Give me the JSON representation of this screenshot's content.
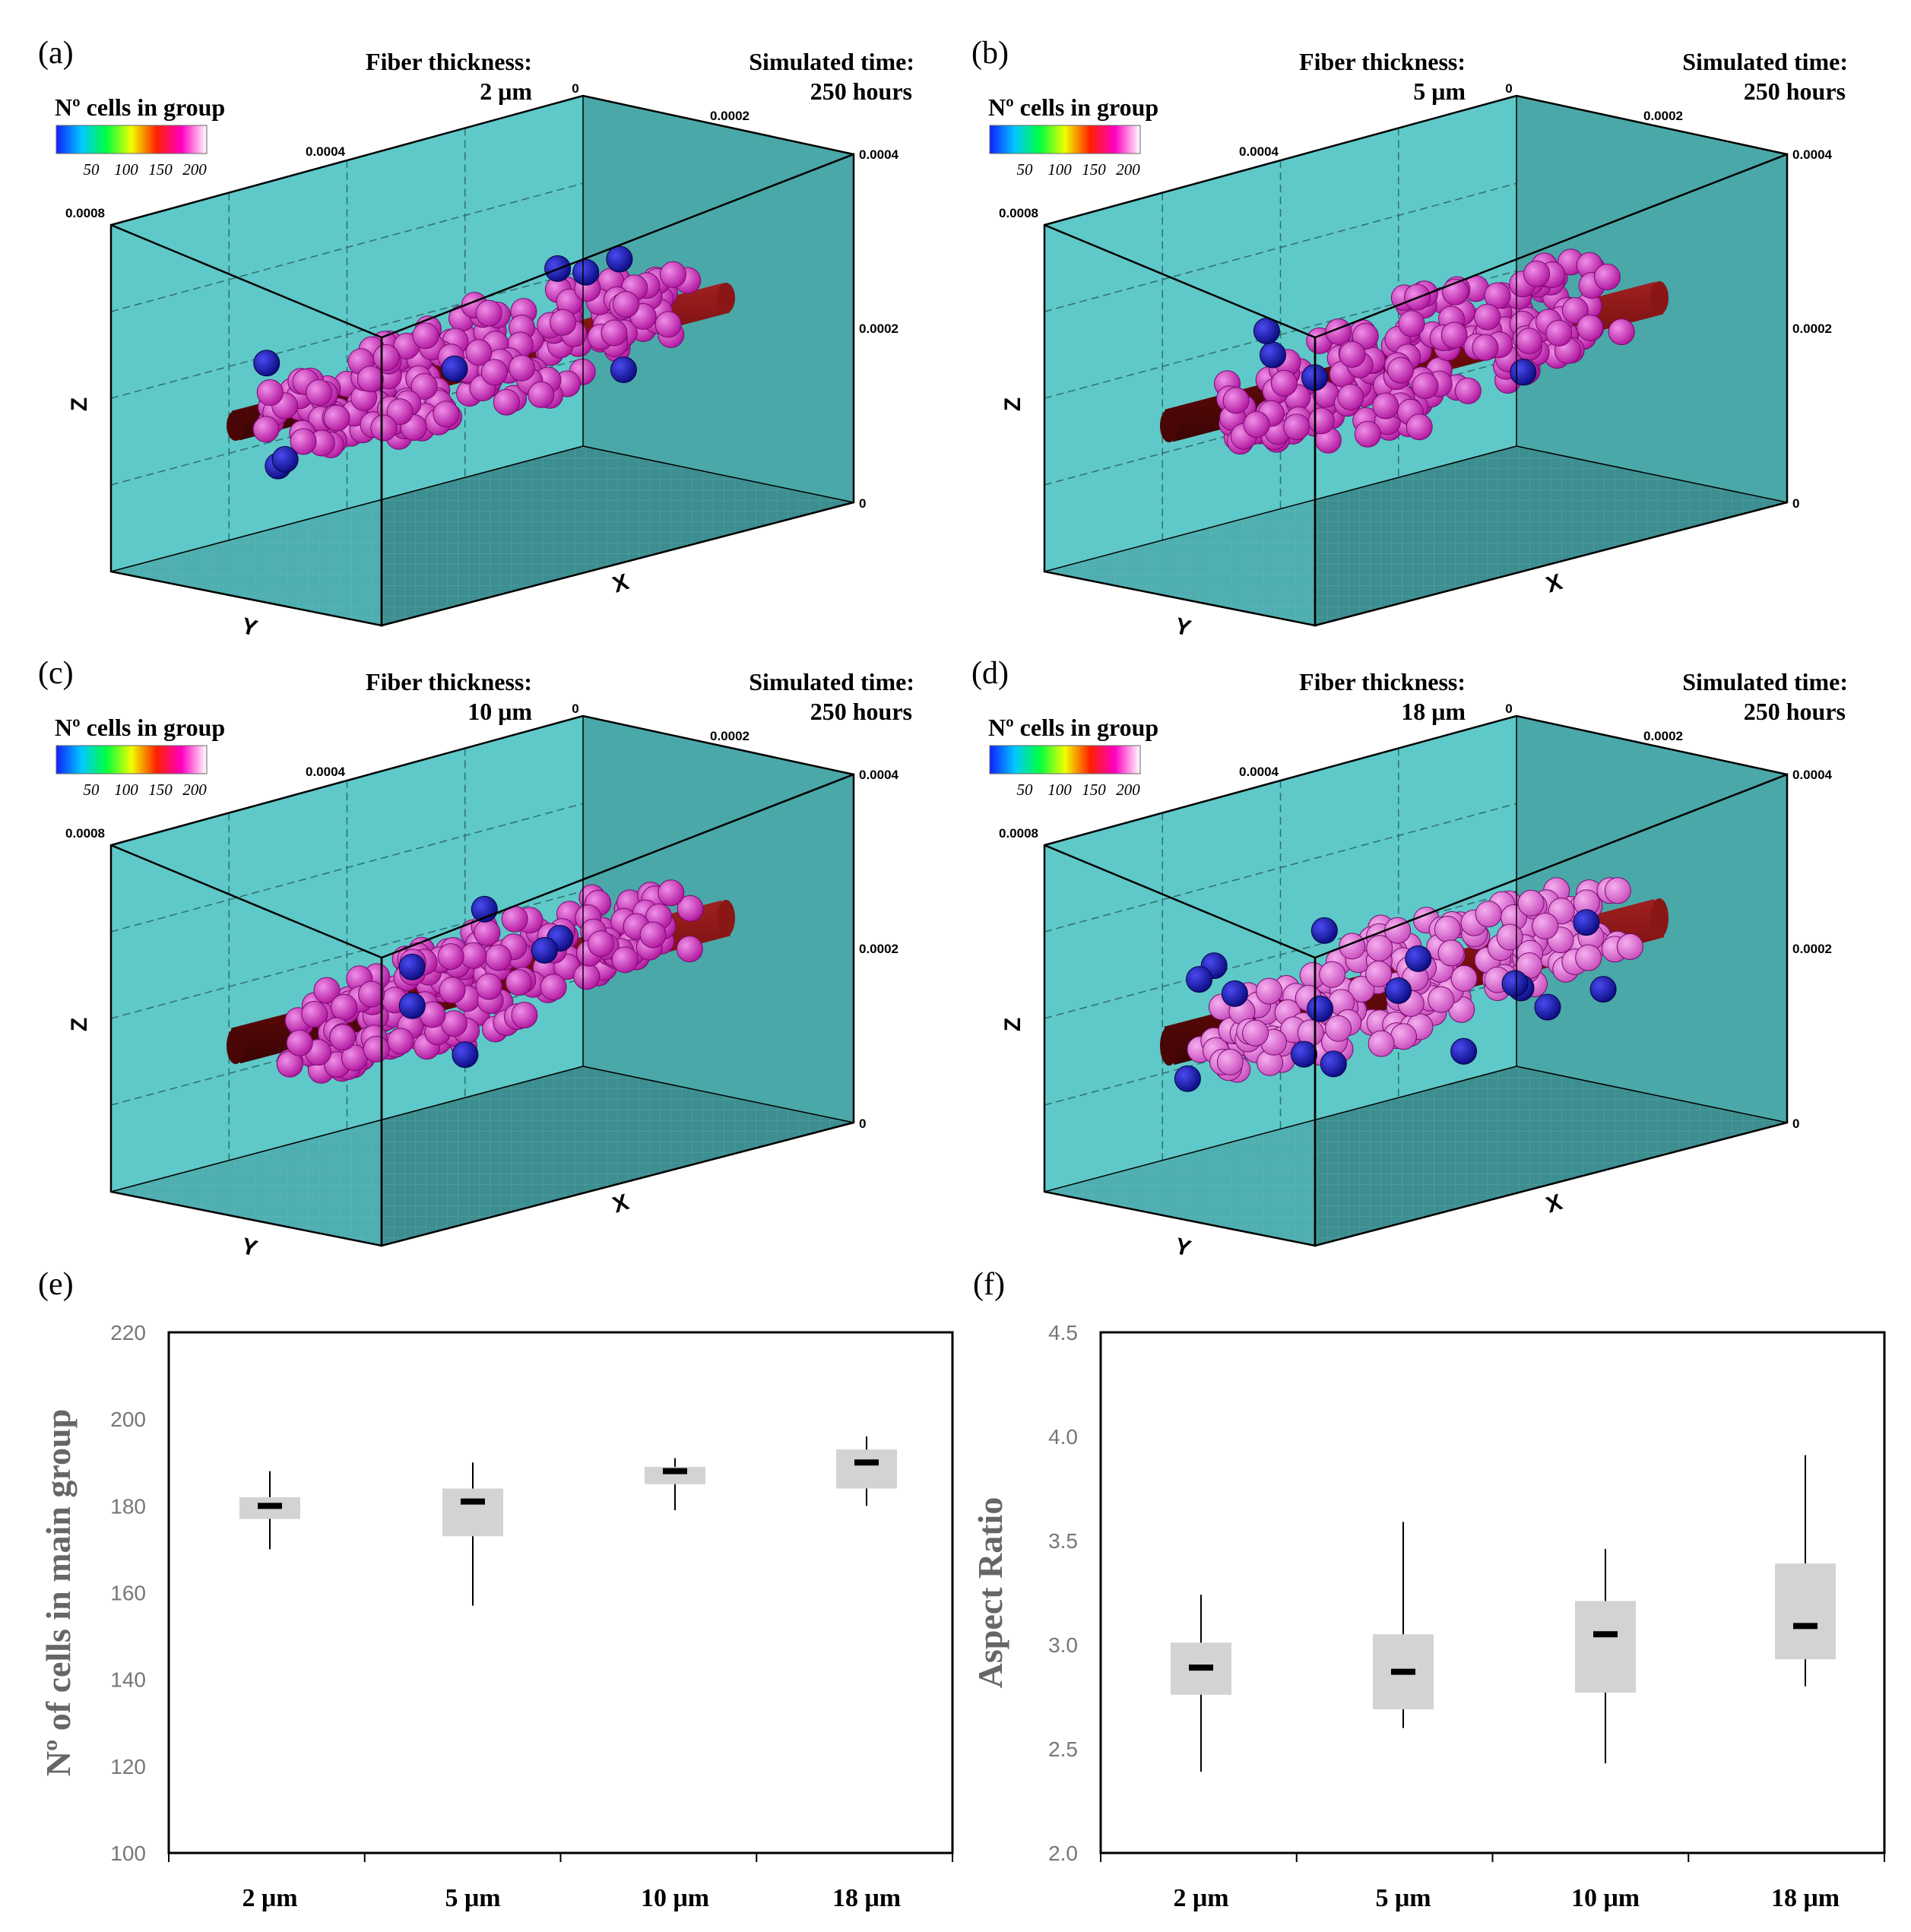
{
  "panels3d": [
    {
      "label": "(a)",
      "fiber_title": "Fiber thickness:",
      "fiber_value": "2 μm",
      "time_title": "Simulated time:",
      "time_value": "250 hours"
    },
    {
      "label": "(b)",
      "fiber_title": "Fiber thickness:",
      "fiber_value": "5 μm",
      "time_title": "Simulated time:",
      "time_value": "250 hours"
    },
    {
      "label": "(c)",
      "fiber_title": "Fiber thickness:",
      "fiber_value": "10 μm",
      "time_title": "Simulated time:",
      "time_value": "250 hours"
    },
    {
      "label": "(d)",
      "fiber_title": "Fiber thickness:",
      "fiber_value": "18 μm",
      "time_title": "Simulated time:",
      "time_value": "250 hours"
    }
  ],
  "colorbar": {
    "title": "Nº cells in group",
    "ticks": [
      "50",
      "100",
      "150",
      "200"
    ],
    "colors": [
      "#1020ff",
      "#00c8ff",
      "#00ff40",
      "#f0ff00",
      "#ff2000",
      "#ff00c0",
      "#ffffff"
    ]
  },
  "axes3d": {
    "x_label": "X",
    "y_label": "Y",
    "z_label": "Z",
    "top_ticks": [
      "0",
      "0.0002",
      "0.0004"
    ],
    "y_ticks": [
      "0.0004",
      "0.0008"
    ],
    "z_ticks": [
      "0.0002",
      "0"
    ]
  },
  "colors": {
    "box_face": "#5fc8c8",
    "box_side": "#4aa8a8",
    "floor": "#3d8e90",
    "fiber": "#6a0a0a",
    "cell": "#d62fc4",
    "cell_light": "#e070d8",
    "cell_outlier": "#1a1ab0",
    "box_fill": "#d3d3d3",
    "median": "#000000"
  },
  "chart_data": [
    {
      "type": "box",
      "panel_label": "(e)",
      "title": "",
      "xlabel": "",
      "ylabel": "Nº of cells in main group",
      "categories": [
        "2 μm",
        "5 μm",
        "10 μm",
        "18 μm"
      ],
      "ylim": [
        100,
        220
      ],
      "yticks": [
        "100",
        "120",
        "140",
        "160",
        "180",
        "200",
        "220"
      ],
      "boxes": [
        {
          "min": 170,
          "q1": 177,
          "median": 180,
          "q3": 182,
          "max": 188
        },
        {
          "min": 157,
          "q1": 173,
          "median": 181,
          "q3": 184,
          "max": 190
        },
        {
          "min": 179,
          "q1": 185,
          "median": 188,
          "q3": 189,
          "max": 191
        },
        {
          "min": 180,
          "q1": 184,
          "median": 190,
          "q3": 193,
          "max": 196
        }
      ]
    },
    {
      "type": "box",
      "panel_label": "(f)",
      "title": "",
      "xlabel": "",
      "ylabel": "Aspect Ratio",
      "categories": [
        "2 μm",
        "5 μm",
        "10 μm",
        "18 μm"
      ],
      "ylim": [
        2.0,
        4.5
      ],
      "yticks": [
        "2.0",
        "2.5",
        "3.0",
        "3.5",
        "4.0",
        "4.5"
      ],
      "boxes": [
        {
          "min": 2.39,
          "q1": 2.76,
          "median": 2.89,
          "q3": 3.01,
          "max": 3.24
        },
        {
          "min": 2.6,
          "q1": 2.69,
          "median": 2.87,
          "q3": 3.05,
          "max": 3.59
        },
        {
          "min": 2.43,
          "q1": 2.77,
          "median": 3.05,
          "q3": 3.21,
          "max": 3.46
        },
        {
          "min": 2.8,
          "q1": 2.93,
          "median": 3.09,
          "q3": 3.39,
          "max": 3.91
        }
      ]
    }
  ]
}
